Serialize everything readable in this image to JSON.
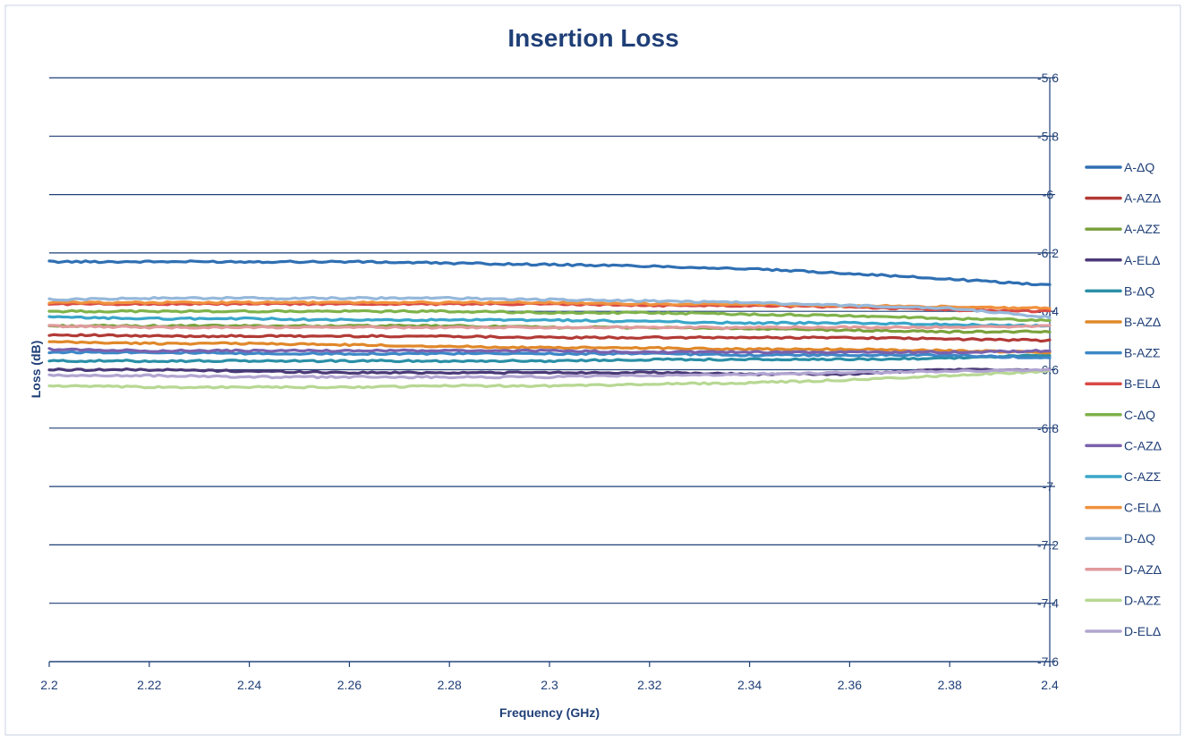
{
  "chart_data": {
    "type": "line",
    "title": "Insertion Loss",
    "xlabel": "Frequency (GHz)",
    "ylabel": "Loss (dB)",
    "xlim": [
      2.2,
      2.4
    ],
    "ylim": [
      -7.6,
      -5.6
    ],
    "x_ticks": [
      2.2,
      2.22,
      2.24,
      2.26,
      2.28,
      2.3,
      2.32,
      2.34,
      2.36,
      2.38,
      2.4
    ],
    "x_tick_labels": [
      "2.2",
      "2.22",
      "2.24",
      "2.26",
      "2.28",
      "2.3",
      "2.32",
      "2.34",
      "2.36",
      "2.38",
      "2.4"
    ],
    "y_ticks": [
      -5.6,
      -5.8,
      -6,
      -6.2,
      -6.4,
      -6.6,
      -6.8,
      -7,
      -7.2,
      -7.4,
      -7.6
    ],
    "y_tick_labels": [
      "-5.6",
      "-5.8",
      "-6",
      "-6.2",
      "-6.4",
      "-6.6",
      "-6.8",
      "-7",
      "-7.2",
      "-7.4",
      "-7.6"
    ],
    "grid": "horizontal",
    "legend_position": "right",
    "y_axis_position": "right",
    "x": [
      2.2,
      2.22,
      2.24,
      2.26,
      2.28,
      2.3,
      2.32,
      2.34,
      2.36,
      2.38,
      2.4
    ],
    "series": [
      {
        "name": "A-ΔQ",
        "color": "#2f6fb3",
        "values": [
          -6.23,
          -6.23,
          -6.23,
          -6.23,
          -6.235,
          -6.24,
          -6.245,
          -6.255,
          -6.27,
          -6.29,
          -6.31
        ]
      },
      {
        "name": "A-AZΔ",
        "color": "#b23a36",
        "values": [
          -6.48,
          -6.485,
          -6.485,
          -6.485,
          -6.485,
          -6.49,
          -6.49,
          -6.49,
          -6.49,
          -6.495,
          -6.5
        ]
      },
      {
        "name": "A-AZΣ",
        "color": "#7aa23c",
        "values": [
          -6.45,
          -6.45,
          -6.45,
          -6.45,
          -6.45,
          -6.455,
          -6.455,
          -6.46,
          -6.465,
          -6.47,
          -6.47
        ]
      },
      {
        "name": "A-ELΔ",
        "color": "#4b3a78",
        "values": [
          -6.6,
          -6.6,
          -6.605,
          -6.61,
          -6.61,
          -6.61,
          -6.61,
          -6.615,
          -6.615,
          -6.6,
          -6.6
        ]
      },
      {
        "name": "B-ΔQ",
        "color": "#2b8fa6",
        "values": [
          -6.57,
          -6.57,
          -6.57,
          -6.57,
          -6.57,
          -6.57,
          -6.565,
          -6.565,
          -6.565,
          -6.56,
          -6.55
        ]
      },
      {
        "name": "B-AZΔ",
        "color": "#e0882a",
        "values": [
          -6.505,
          -6.51,
          -6.51,
          -6.515,
          -6.52,
          -6.525,
          -6.525,
          -6.53,
          -6.53,
          -6.535,
          -6.54
        ]
      },
      {
        "name": "B-AZΣ",
        "color": "#3d87c7",
        "values": [
          -6.54,
          -6.54,
          -6.545,
          -6.545,
          -6.545,
          -6.545,
          -6.545,
          -6.55,
          -6.55,
          -6.55,
          -6.56
        ]
      },
      {
        "name": "B-ELΔ",
        "color": "#d94a45",
        "values": [
          -6.375,
          -6.375,
          -6.375,
          -6.375,
          -6.375,
          -6.375,
          -6.38,
          -6.38,
          -6.385,
          -6.395,
          -6.4
        ]
      },
      {
        "name": "C-ΔQ",
        "color": "#7fb24a",
        "values": [
          -6.4,
          -6.4,
          -6.4,
          -6.4,
          -6.4,
          -6.405,
          -6.405,
          -6.41,
          -6.415,
          -6.425,
          -6.43
        ]
      },
      {
        "name": "C-AZΔ",
        "color": "#7b61ad",
        "values": [
          -6.53,
          -6.535,
          -6.535,
          -6.535,
          -6.535,
          -6.535,
          -6.54,
          -6.54,
          -6.54,
          -6.54,
          -6.535
        ]
      },
      {
        "name": "C-AZΣ",
        "color": "#3aa6c9",
        "values": [
          -6.42,
          -6.425,
          -6.425,
          -6.43,
          -6.43,
          -6.43,
          -6.435,
          -6.44,
          -6.44,
          -6.445,
          -6.45
        ]
      },
      {
        "name": "C-ELΔ",
        "color": "#f0913d",
        "values": [
          -6.37,
          -6.37,
          -6.37,
          -6.37,
          -6.37,
          -6.37,
          -6.375,
          -6.375,
          -6.38,
          -6.385,
          -6.39
        ]
      },
      {
        "name": "D-ΔQ",
        "color": "#96b8da",
        "values": [
          -6.36,
          -6.355,
          -6.355,
          -6.355,
          -6.355,
          -6.36,
          -6.365,
          -6.37,
          -6.38,
          -6.39,
          -6.42
        ]
      },
      {
        "name": "D-AZΔ",
        "color": "#e09a9c",
        "values": [
          -6.45,
          -6.455,
          -6.455,
          -6.455,
          -6.455,
          -6.455,
          -6.455,
          -6.455,
          -6.455,
          -6.455,
          -6.45
        ]
      },
      {
        "name": "D-AZΣ",
        "color": "#b7d893",
        "values": [
          -6.655,
          -6.66,
          -6.66,
          -6.66,
          -6.655,
          -6.655,
          -6.65,
          -6.645,
          -6.635,
          -6.62,
          -6.605
        ]
      },
      {
        "name": "D-ELΔ",
        "color": "#b2a5d1",
        "values": [
          -6.62,
          -6.62,
          -6.625,
          -6.625,
          -6.625,
          -6.625,
          -6.62,
          -6.615,
          -6.61,
          -6.605,
          -6.6
        ]
      }
    ]
  }
}
